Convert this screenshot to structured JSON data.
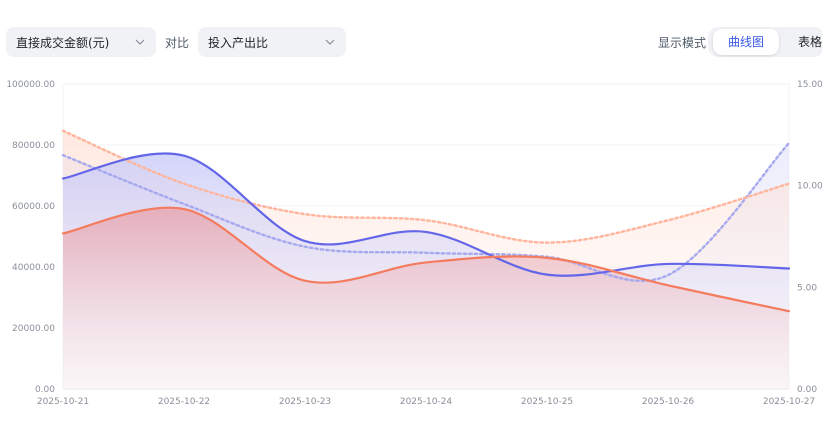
{
  "toolbar": {
    "metric_select": "直接成交金额(元)",
    "compare_label": "对比",
    "compare_select": "投入产出比",
    "mode_label": "显示模式",
    "mode_options": [
      "曲线图",
      "表格"
    ],
    "active_mode": "曲线图"
  },
  "chart_data": {
    "type": "line",
    "x": [
      "2025-10-21",
      "2025-10-22",
      "2025-10-23",
      "2025-10-24",
      "2025-10-25",
      "2025-10-26",
      "2025-10-27"
    ],
    "y_left": {
      "range": [
        0,
        100000
      ],
      "ticks": [
        "0.00",
        "20000.00",
        "40000.00",
        "60000.00",
        "80000.00",
        "100000.00"
      ]
    },
    "y_right": {
      "range": [
        0,
        15
      ],
      "ticks": [
        "0.00",
        "5.00",
        "10.00",
        "15.00"
      ]
    },
    "grid": true,
    "series": [
      {
        "axis": "left",
        "style": "solid",
        "color": "#f47b5d",
        "values": [
          51000,
          59000,
          35500,
          41500,
          43000,
          34000,
          25500
        ]
      },
      {
        "axis": "left",
        "style": "solid",
        "color": "#6366e8",
        "values": [
          69000,
          76500,
          48500,
          51500,
          37500,
          41000,
          39500
        ]
      },
      {
        "axis": "right",
        "style": "dotted",
        "color": "#ffb49c",
        "values": [
          12.7,
          10.1,
          8.6,
          8.3,
          7.2,
          8.3,
          10.1
        ]
      },
      {
        "axis": "right",
        "style": "dotted",
        "color": "#a6a9ee",
        "values": [
          11.5,
          9.1,
          7.0,
          6.7,
          6.5,
          5.6,
          12.1
        ]
      }
    ]
  }
}
